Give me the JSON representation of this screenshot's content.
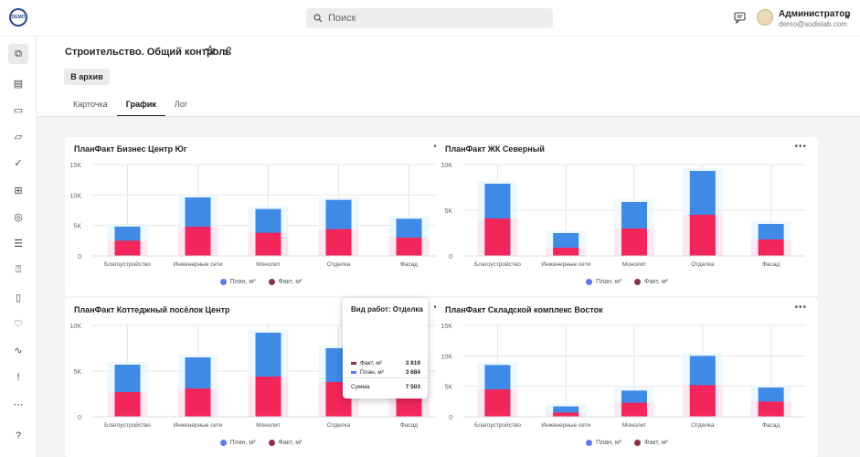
{
  "logo_text": "DEMO",
  "search": {
    "placeholder": "Поиск"
  },
  "user": {
    "name": "Администратор",
    "email": "demo@sodislab.com"
  },
  "page": {
    "title": "Строительство. Общий контроль",
    "archive_button": "В архив"
  },
  "tabs": [
    {
      "label": "Карточка"
    },
    {
      "label": "График",
      "active": true
    },
    {
      "label": "Лог"
    }
  ],
  "colors": {
    "plan": "#3f8ae6",
    "fact": "#f2265b",
    "plan_legend": "#5b7cf0",
    "fact_legend": "#8a3344"
  },
  "chart_data": [
    {
      "type": "bar",
      "title": "ПланФакт Бизнес Центр Юг",
      "categories": [
        "Благоустройство",
        "Инженерные сети",
        "Монолит",
        "Отделка",
        "Фасад"
      ],
      "ylim": [
        0,
        15000
      ],
      "yticks": [
        "0",
        "5K",
        "10K",
        "15K"
      ],
      "series": [
        {
          "name": "План, м²",
          "values": [
            4800,
            9600,
            7700,
            9200,
            6100
          ]
        },
        {
          "name": "Факт, м²",
          "values": [
            2500,
            4800,
            3800,
            4400,
            3000
          ]
        }
      ],
      "legend": "bottom"
    },
    {
      "type": "bar",
      "title": "ПланФакт ЖК Северный",
      "categories": [
        "Благоустройство",
        "Инженерные сети",
        "Монолит",
        "Отделка",
        "Фасад"
      ],
      "ylim": [
        0,
        10000
      ],
      "yticks": [
        "0",
        "5K",
        "10K"
      ],
      "series": [
        {
          "name": "План, м²",
          "values": [
            7900,
            2500,
            5900,
            9300,
            3500
          ]
        },
        {
          "name": "Факт, м²",
          "values": [
            4100,
            900,
            3000,
            4500,
            1800
          ]
        }
      ],
      "legend": "bottom"
    },
    {
      "type": "bar",
      "title": "ПланФакт Коттеджный посёлок Центр",
      "categories": [
        "Благоустройство",
        "Инженерные сети",
        "Монолит",
        "Отделка",
        "Фасад"
      ],
      "ylim": [
        0,
        10000
      ],
      "yticks": [
        "0",
        "5K",
        "10K"
      ],
      "series": [
        {
          "name": "План, м²",
          "values": [
            5700,
            6500,
            9200,
            7500,
            6000
          ]
        },
        {
          "name": "Факт, м²",
          "values": [
            2700,
            3100,
            4400,
            3800,
            2800
          ]
        }
      ],
      "legend": "bottom"
    },
    {
      "type": "bar",
      "title": "ПланФакт Складской комплекс Восток",
      "categories": [
        "Благоустройство",
        "Инженерные сети",
        "Монолит",
        "Отделка",
        "Фасад"
      ],
      "ylim": [
        0,
        15000
      ],
      "yticks": [
        "0",
        "5K",
        "10K",
        "15K"
      ],
      "series": [
        {
          "name": "План, м²",
          "values": [
            8500,
            1700,
            4300,
            10000,
            4800
          ]
        },
        {
          "name": "Факт, м²",
          "values": [
            4500,
            700,
            2300,
            5200,
            2500
          ]
        }
      ],
      "legend": "bottom"
    }
  ],
  "tooltip": {
    "title": "Вид работ: Отделка",
    "fact_label": "Факт, м²",
    "fact_value": "3 819",
    "plan_label": "План, м²",
    "plan_value": "3 684",
    "sum_label": "Сумма",
    "sum_value": "7 503"
  },
  "sidebar_icons": [
    "hierarchy-icon",
    "document-icon",
    "file-icon",
    "folder-icon",
    "check-icon",
    "sitemap-icon",
    "user-circle-icon",
    "list-icon",
    "help-chat-icon",
    "book-icon",
    "heart-icon",
    "pulse-icon",
    "alert-icon",
    "more-icon",
    "question-icon"
  ]
}
